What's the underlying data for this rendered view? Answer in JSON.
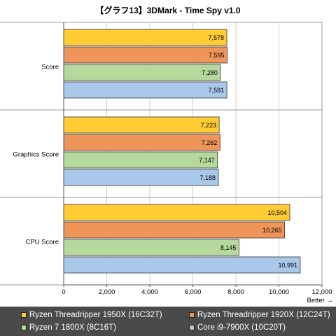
{
  "chart_data": {
    "type": "bar",
    "orientation": "horizontal",
    "title": "【グラフ13】3DMark - Time Spy v1.0",
    "categories": [
      "Score",
      "Graphics Score",
      "CPU Score"
    ],
    "series": [
      {
        "name": "Ryzen Threadripper 1950X (16C32T)",
        "color": "#ffcc33",
        "values": [
          7578,
          7223,
          10504
        ],
        "labels": [
          "7,578",
          "7,223",
          "10,504"
        ]
      },
      {
        "name": "Ryzen Threadripper 1920X (12C24T)",
        "color": "#f0955a",
        "values": [
          7595,
          7262,
          10265
        ],
        "labels": [
          "7,595",
          "7,262",
          "10,265"
        ]
      },
      {
        "name": "Ryzen 7 1800X (8C16T)",
        "color": "#b5d89d",
        "values": [
          7280,
          7147,
          8145
        ],
        "labels": [
          "7,280",
          "7,147",
          "8,145"
        ]
      },
      {
        "name": "Core i9-7900X (10C20T)",
        "color": "#a9c8ea",
        "values": [
          7581,
          7188,
          10991
        ],
        "labels": [
          "7,581",
          "7,188",
          "10,991"
        ]
      }
    ],
    "xlim": [
      0,
      12000
    ],
    "xticks": [
      0,
      2000,
      4000,
      6000,
      8000,
      10000,
      12000
    ],
    "xtick_labels": [
      "0",
      "2,000",
      "4,000",
      "6,000",
      "8,000",
      "10,000",
      "12,000"
    ],
    "annotation": "Better →",
    "grid": true,
    "legend_position": "bottom"
  }
}
